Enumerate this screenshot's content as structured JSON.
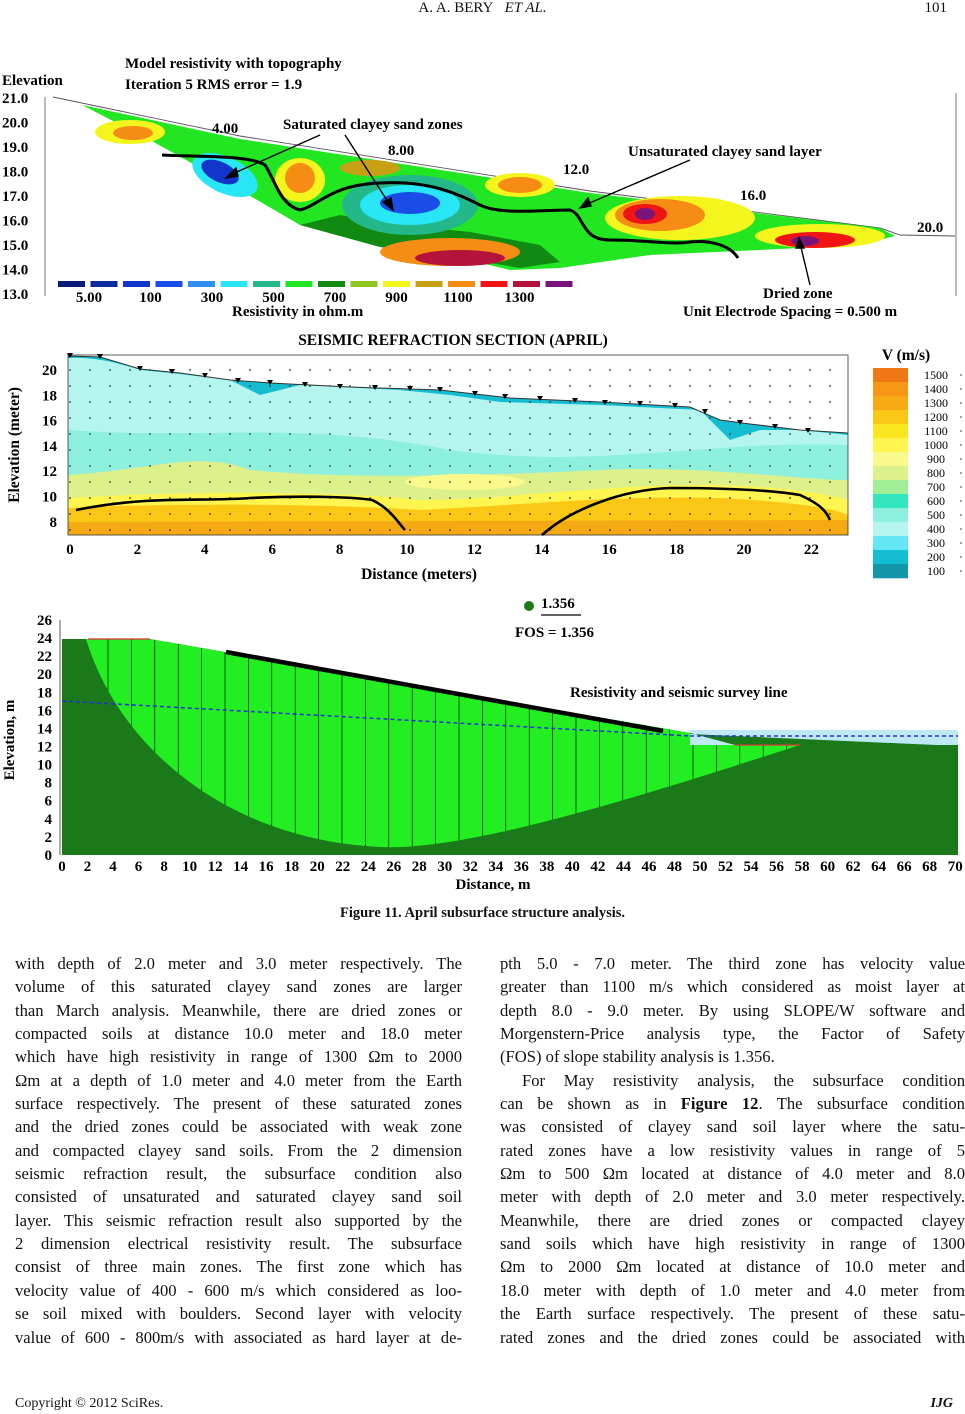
{
  "header": {
    "title": "A. A. BERY",
    "title_italic": "ET AL.",
    "page_number": "101"
  },
  "figure_resistivity": {
    "title1": "Model resistivity with topography",
    "title2": "Iteration 5 RMS error = 1.9",
    "y_axis_title": "Elevation",
    "y_ticks": [
      "21.0",
      "20.0",
      "19.0",
      "18.0",
      "17.0",
      "16.0",
      "15.0",
      "14.0",
      "13.0"
    ],
    "distance_labels": [
      "4.00",
      "8.00",
      "12.0",
      "16.0",
      "20.0"
    ],
    "annotations": {
      "saturated": "Saturated clayey sand zones",
      "unsaturated": "Unsaturated clayey sand layer",
      "dried": "Dried zone"
    },
    "legend_colors": [
      "#0a1a7a",
      "#0c2a9e",
      "#1234c8",
      "#1a4ce8",
      "#2f8ff0",
      "#28e6f5",
      "#22b88a",
      "#22e622",
      "#118a11",
      "#8cc820",
      "#f5f51e",
      "#c8a014",
      "#f58c14",
      "#f01414",
      "#b4143c",
      "#78147a"
    ],
    "legend_labels": [
      "5.00",
      "100",
      "300",
      "500",
      "700",
      "900",
      "1100",
      "1300"
    ],
    "legend_title": "Resistivity in ohm.m",
    "electrode_spacing": "Unit Electrode Spacing  = 0.500 m"
  },
  "figure_seismic": {
    "title": "SEISMIC REFRACTION SECTION (APRIL)",
    "y_axis_title": "Elevation (meter)",
    "y_ticks": [
      "20",
      "18",
      "16",
      "14",
      "12",
      "10",
      "8"
    ],
    "x_ticks": [
      "0",
      "2",
      "4",
      "6",
      "8",
      "10",
      "12",
      "14",
      "16",
      "18",
      "20",
      "22"
    ],
    "x_axis_title": "Distance (meters)",
    "legend_title": "V (m/s)",
    "legend_labels": [
      "1500",
      "1400",
      "1300",
      "1200",
      "1100",
      "1000",
      "900",
      "800",
      "700",
      "600",
      "500",
      "400",
      "300",
      "200",
      "100"
    ],
    "legend_colors": [
      "#f07814",
      "#f59614",
      "#f5aa14",
      "#fac814",
      "#fae61e",
      "#fff550",
      "#fafa8c",
      "#dcf08c",
      "#a0ee96",
      "#32e6be",
      "#8cf0dc",
      "#b4f5f0",
      "#64e6f5",
      "#14bed2",
      "#1496aa"
    ]
  },
  "figure_slope": {
    "fos_marker_label": "1.356",
    "fos_text": "FOS = 1.356",
    "survey_line_label": "Resistivity and seismic survey line",
    "y_axis_title": "Elevation, m",
    "y_ticks": [
      "26",
      "24",
      "22",
      "20",
      "18",
      "16",
      "14",
      "12",
      "10",
      "8",
      "6",
      "4",
      "2",
      "0"
    ],
    "x_ticks": [
      "0",
      "2",
      "4",
      "6",
      "8",
      "10",
      "12",
      "14",
      "16",
      "18",
      "20",
      "22",
      "24",
      "26",
      "28",
      "30",
      "32",
      "34",
      "36",
      "38",
      "40",
      "42",
      "44",
      "46",
      "48",
      "50",
      "52",
      "54",
      "56",
      "58",
      "60",
      "62",
      "64",
      "66",
      "68",
      "70"
    ],
    "x_axis_title": "Distance, m"
  },
  "caption": "Figure 11. April subsurface structure analysis.",
  "body": {
    "left_lines": [
      "with depth of 2.0 meter and 3.0 meter respectively. The",
      "volume of this saturated clayey sand zones are larger",
      "than March analysis. Meanwhile, there are dried zones or",
      "compacted soils at distance 10.0 meter and 18.0 meter",
      "which have high resistivity in range of 1300 Ωm to 2000",
      "Ωm at a depth of 1.0 meter and 4.0 meter from the Earth",
      "surface respectively. The present of these saturated zones",
      "and the dried zones could be associated with weak zone",
      "and compacted clayey sand soils. From the 2 dimension",
      "seismic refraction result, the subsurface condition also",
      "consisted of unsaturated and saturated clayey sand soil",
      "layer. This seismic refraction result also supported by the",
      "2 dimension electrical resistivity result. The subsurface",
      "consist of three main zones. The first zone which has",
      "velocity value of 400 - 600 m/s which considered as loo-",
      "se soil mixed with boulders. Second layer with velocity",
      "value of 600 - 800m/s with associated as hard layer at de-"
    ],
    "right_lines": [
      "pth 5.0 - 7.0 meter. The third zone has velocity value",
      "greater than 1100 m/s which considered as moist layer at",
      "depth 8.0 - 9.0 meter. By using SLOPE/W software and",
      "Morgenstern-Price analysis type, the Factor of Safety",
      "(FOS) of slope stability analysis is 1.356.",
      "For May resistivity analysis, the subsurface condition",
      "can be shown as in ",
      "was consisted of clayey sand soil layer where the satu-",
      "rated zones have a low resistivity values in range of 5",
      "Ωm to 500 Ωm located at distance of 4.0 meter and 8.0",
      "meter with depth of 2.0 meter and 3.0 meter respectively.",
      "Meanwhile, there are dried zones or compacted clayey",
      "sand soils which have high resistivity in range of 1300",
      "Ωm to 2000 Ωm located at distance of 10.0 meter and",
      "18.0 meter with depth of 1.0 meter and 4.0 meter from",
      "the Earth surface respectively. The present of these satu-",
      "rated zones and the dried zones could be associated with"
    ],
    "right_line7_bold": "Figure 12",
    "right_line7_after": ". The subsurface condition"
  },
  "footer": {
    "copyright": "Copyright © 2012 SciRes.",
    "journal": "IJG"
  }
}
